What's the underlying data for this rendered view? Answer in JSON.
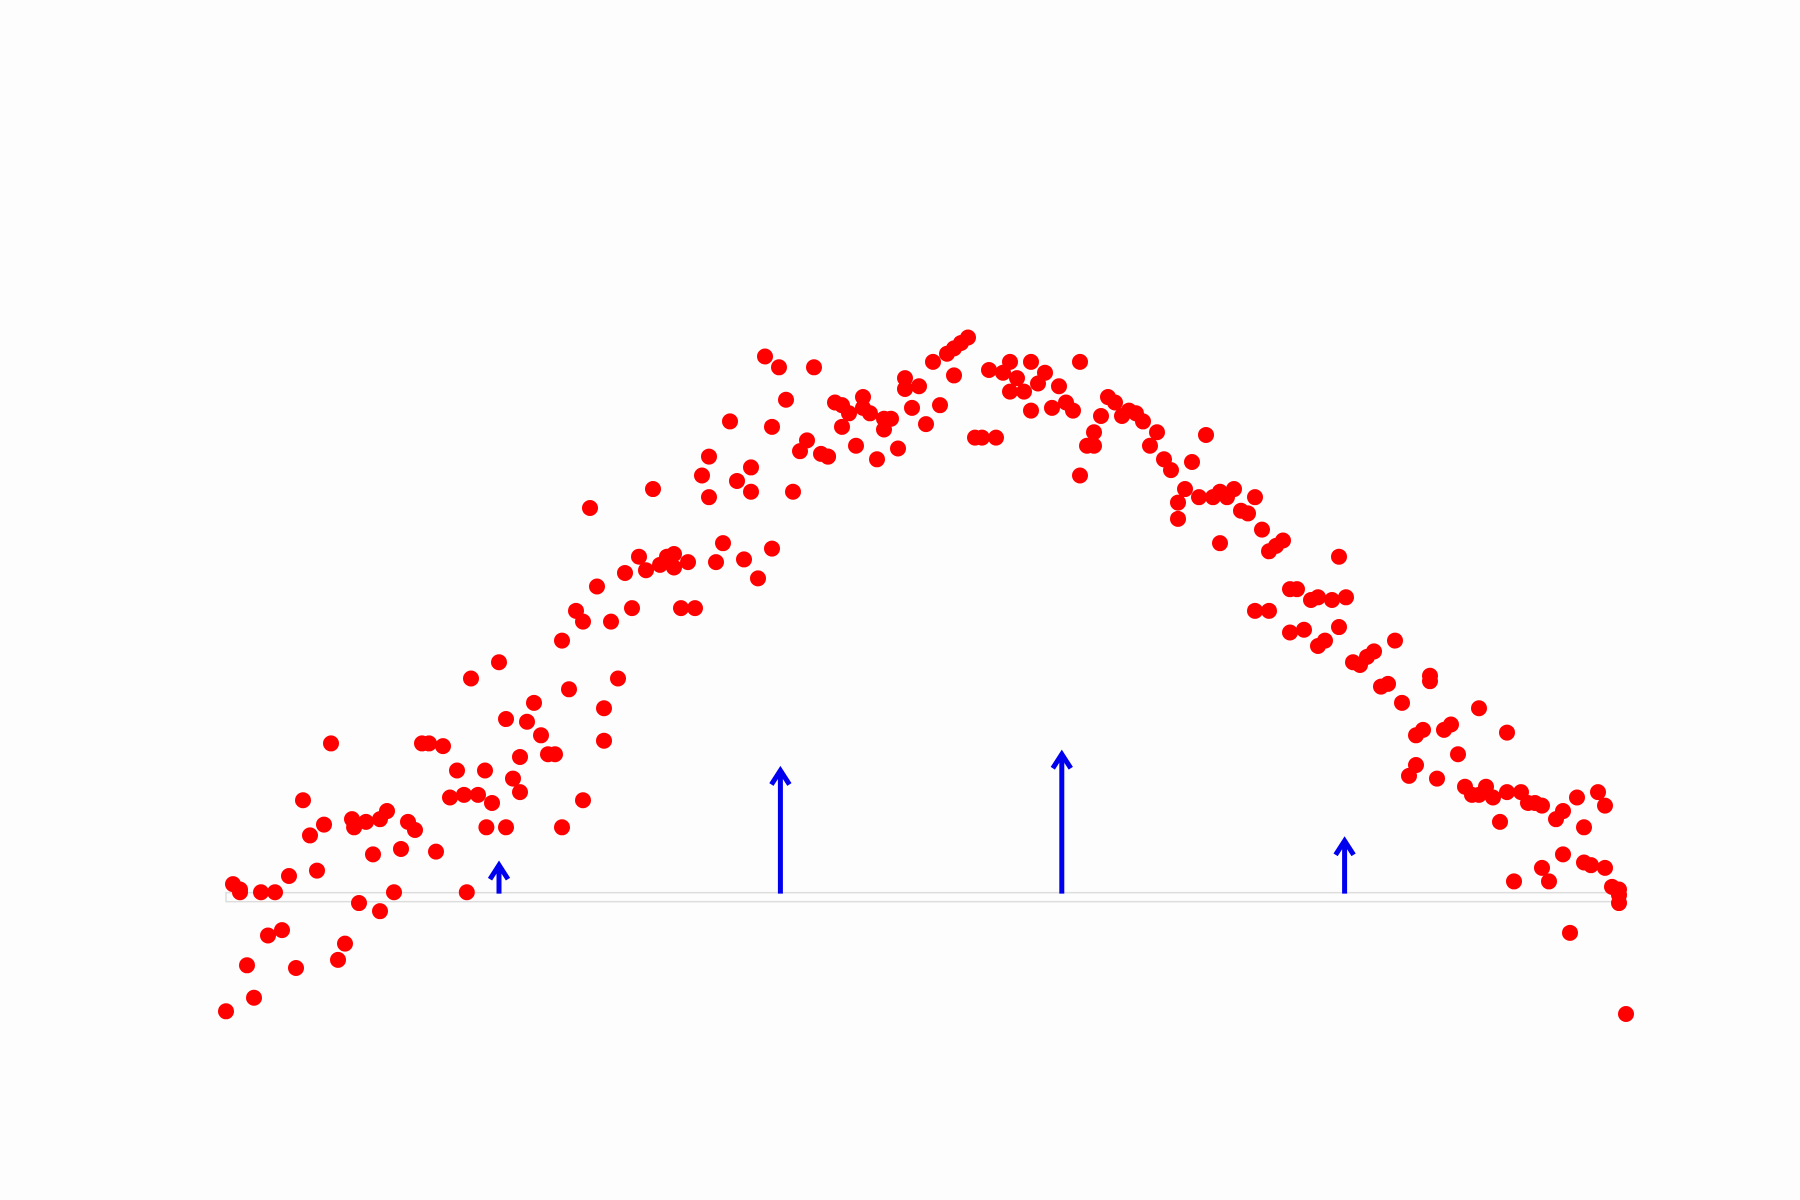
{
  "colors": {
    "background": "#fdfdfd",
    "points": "#ff0000",
    "arrows": "#0000ee",
    "baseline": "#dddddd"
  },
  "chart_data": {
    "type": "scatter",
    "title": "",
    "xlabel": "",
    "ylabel": "",
    "xlim": [
      0,
      1
    ],
    "ylim": [
      -0.6,
      2.8
    ],
    "grid": false,
    "baseline_y": 0,
    "series": [
      {
        "kind": "points",
        "points": [
          [
            0.0,
            -0.42
          ],
          [
            0.005,
            0.05
          ],
          [
            0.01,
            0.02
          ],
          [
            0.015,
            -0.25
          ],
          [
            0.02,
            -0.37
          ],
          [
            0.025,
            0.02
          ],
          [
            0.03,
            -0.14
          ],
          [
            0.035,
            0.02
          ],
          [
            0.04,
            -0.12
          ],
          [
            0.045,
            0.08
          ],
          [
            0.05,
            -0.26
          ],
          [
            0.055,
            0.36
          ],
          [
            0.06,
            0.23
          ],
          [
            0.065,
            0.1
          ],
          [
            0.07,
            0.27
          ],
          [
            0.075,
            0.57
          ],
          [
            0.08,
            -0.23
          ],
          [
            0.085,
            -0.17
          ],
          [
            0.09,
            0.29
          ],
          [
            0.095,
            -0.02
          ],
          [
            0.1,
            0.28
          ],
          [
            0.105,
            0.16
          ],
          [
            0.11,
            0.29
          ],
          [
            0.115,
            0.32
          ],
          [
            0.12,
            0.02
          ],
          [
            0.125,
            0.18
          ],
          [
            0.13,
            0.28
          ],
          [
            0.135,
            0.25
          ],
          [
            0.14,
            0.57
          ],
          [
            0.145,
            0.57
          ],
          [
            0.15,
            0.17
          ],
          [
            0.155,
            0.56
          ],
          [
            0.16,
            0.37
          ],
          [
            0.165,
            0.47
          ],
          [
            0.17,
            0.38
          ],
          [
            0.175,
            0.81
          ],
          [
            0.18,
            0.38
          ],
          [
            0.185,
            0.47
          ],
          [
            0.19,
            0.35
          ],
          [
            0.195,
            0.87
          ],
          [
            0.2,
            0.66
          ],
          [
            0.205,
            0.44
          ],
          [
            0.21,
            0.39
          ],
          [
            0.215,
            0.65
          ],
          [
            0.22,
            0.72
          ],
          [
            0.225,
            0.6
          ],
          [
            0.23,
            0.53
          ],
          [
            0.235,
            0.53
          ],
          [
            0.24,
            0.95
          ],
          [
            0.245,
            0.77
          ],
          [
            0.25,
            1.06
          ],
          [
            0.255,
            1.02
          ],
          [
            0.26,
            1.44
          ],
          [
            0.265,
            1.15
          ],
          [
            0.27,
            0.7
          ],
          [
            0.275,
            1.02
          ],
          [
            0.28,
            0.81
          ],
          [
            0.285,
            1.2
          ],
          [
            0.29,
            1.07
          ],
          [
            0.295,
            1.26
          ],
          [
            0.3,
            1.21
          ],
          [
            0.305,
            1.51
          ],
          [
            0.31,
            1.23
          ],
          [
            0.315,
            1.26
          ],
          [
            0.32,
            1.27
          ],
          [
            0.325,
            1.07
          ],
          [
            0.33,
            1.24
          ],
          [
            0.335,
            1.07
          ],
          [
            0.34,
            1.56
          ],
          [
            0.345,
            1.63
          ],
          [
            0.35,
            1.24
          ],
          [
            0.355,
            1.31
          ],
          [
            0.36,
            1.76
          ],
          [
            0.365,
            1.54
          ],
          [
            0.37,
            1.25
          ],
          [
            0.375,
            1.5
          ],
          [
            0.38,
            1.18
          ],
          [
            0.385,
            2.0
          ],
          [
            0.39,
            1.74
          ],
          [
            0.395,
            1.96
          ],
          [
            0.4,
            1.84
          ],
          [
            0.405,
            1.5
          ],
          [
            0.41,
            1.65
          ],
          [
            0.415,
            1.69
          ],
          [
            0.42,
            1.96
          ],
          [
            0.425,
            1.64
          ],
          [
            0.43,
            1.63
          ],
          [
            0.435,
            1.83
          ],
          [
            0.44,
            1.74
          ],
          [
            0.445,
            1.79
          ],
          [
            0.45,
            1.67
          ],
          [
            0.455,
            1.81
          ],
          [
            0.46,
            1.79
          ],
          [
            0.465,
            1.62
          ],
          [
            0.47,
            1.77
          ],
          [
            0.475,
            1.77
          ],
          [
            0.48,
            1.66
          ],
          [
            0.485,
            1.92
          ],
          [
            0.49,
            1.81
          ],
          [
            0.495,
            1.89
          ],
          [
            0.5,
            1.75
          ],
          [
            0.505,
            1.98
          ],
          [
            0.51,
            1.82
          ],
          [
            0.515,
            2.01
          ],
          [
            0.52,
            2.03
          ],
          [
            0.525,
            2.05
          ],
          [
            0.53,
            2.07
          ],
          [
            0.535,
            1.7
          ],
          [
            0.54,
            1.7
          ],
          [
            0.545,
            1.95
          ],
          [
            0.55,
            1.7
          ],
          [
            0.555,
            1.94
          ],
          [
            0.56,
            1.98
          ],
          [
            0.565,
            1.92
          ],
          [
            0.57,
            1.87
          ],
          [
            0.575,
            1.98
          ],
          [
            0.58,
            1.9
          ],
          [
            0.585,
            1.94
          ],
          [
            0.59,
            1.81
          ],
          [
            0.595,
            1.89
          ],
          [
            0.6,
            1.83
          ],
          [
            0.605,
            1.8
          ],
          [
            0.61,
            1.56
          ],
          [
            0.615,
            1.67
          ],
          [
            0.62,
            1.72
          ],
          [
            0.625,
            1.78
          ],
          [
            0.63,
            1.85
          ],
          [
            0.635,
            1.83
          ],
          [
            0.64,
            1.78
          ],
          [
            0.645,
            1.8
          ],
          [
            0.65,
            1.79
          ],
          [
            0.655,
            1.76
          ],
          [
            0.66,
            1.67
          ],
          [
            0.665,
            1.72
          ],
          [
            0.67,
            1.62
          ],
          [
            0.675,
            1.58
          ],
          [
            0.68,
            1.46
          ],
          [
            0.685,
            1.51
          ],
          [
            0.69,
            1.61
          ],
          [
            0.695,
            1.48
          ],
          [
            0.7,
            1.71
          ],
          [
            0.705,
            1.48
          ],
          [
            0.71,
            1.5
          ],
          [
            0.715,
            1.48
          ],
          [
            0.72,
            1.51
          ],
          [
            0.725,
            1.43
          ],
          [
            0.73,
            1.42
          ],
          [
            0.735,
            1.48
          ],
          [
            0.74,
            1.36
          ],
          [
            0.745,
            1.28
          ],
          [
            0.75,
            1.3
          ],
          [
            0.755,
            1.32
          ],
          [
            0.76,
            1.14
          ],
          [
            0.765,
            1.14
          ],
          [
            0.77,
            0.99
          ],
          [
            0.775,
            1.1
          ],
          [
            0.78,
            1.11
          ],
          [
            0.785,
            0.95
          ],
          [
            0.79,
            1.1
          ],
          [
            0.795,
            1.26
          ],
          [
            0.8,
            1.11
          ],
          [
            0.805,
            0.87
          ],
          [
            0.81,
            0.86
          ],
          [
            0.815,
            0.89
          ],
          [
            0.82,
            0.91
          ],
          [
            0.825,
            0.78
          ],
          [
            0.83,
            0.79
          ],
          [
            0.835,
            0.95
          ],
          [
            0.84,
            0.72
          ],
          [
            0.845,
            0.45
          ],
          [
            0.85,
            0.6
          ],
          [
            0.855,
            0.62
          ],
          [
            0.86,
            0.82
          ],
          [
            0.865,
            0.44
          ],
          [
            0.87,
            0.62
          ],
          [
            0.875,
            0.64
          ],
          [
            0.88,
            0.53
          ],
          [
            0.885,
            0.41
          ],
          [
            0.89,
            0.38
          ],
          [
            0.895,
            0.38
          ],
          [
            0.9,
            0.41
          ],
          [
            0.905,
            0.37
          ],
          [
            0.91,
            0.28
          ],
          [
            0.915,
            0.61
          ],
          [
            0.92,
            0.06
          ],
          [
            0.925,
            0.39
          ],
          [
            0.93,
            0.35
          ],
          [
            0.935,
            0.35
          ],
          [
            0.94,
            0.11
          ],
          [
            0.945,
            0.06
          ],
          [
            0.95,
            0.29
          ],
          [
            0.955,
            0.32
          ],
          [
            0.96,
            -0.13
          ],
          [
            0.965,
            0.37
          ],
          [
            0.97,
            0.13
          ],
          [
            0.975,
            0.12
          ],
          [
            0.98,
            0.39
          ],
          [
            0.985,
            0.11
          ],
          [
            0.99,
            0.04
          ],
          [
            0.995,
            0.03
          ],
          [
            1.0,
            -0.43
          ],
          [
            0.01,
            0.03
          ],
          [
            0.0915,
            0.26
          ],
          [
            0.11,
            -0.05
          ],
          [
            0.172,
            0.02
          ],
          [
            0.186,
            0.26
          ],
          [
            0.2,
            0.26
          ],
          [
            0.21,
            0.52
          ],
          [
            0.24,
            0.26
          ],
          [
            0.255,
            0.36
          ],
          [
            0.27,
            0.58
          ],
          [
            0.32,
            1.22
          ],
          [
            0.345,
            1.48
          ],
          [
            0.375,
            1.59
          ],
          [
            0.39,
            1.29
          ],
          [
            0.43,
            1.63
          ],
          [
            0.44,
            1.82
          ],
          [
            0.455,
            1.85
          ],
          [
            0.47,
            1.73
          ],
          [
            0.485,
            1.88
          ],
          [
            0.52,
            1.93
          ],
          [
            0.56,
            1.87
          ],
          [
            0.575,
            1.8
          ],
          [
            0.61,
            1.98
          ],
          [
            0.62,
            1.67
          ],
          [
            0.68,
            1.4
          ],
          [
            0.71,
            1.31
          ],
          [
            0.735,
            1.06
          ],
          [
            0.745,
            1.06
          ],
          [
            0.76,
            0.98
          ],
          [
            0.78,
            0.93
          ],
          [
            0.795,
            1.0
          ],
          [
            0.85,
            0.49
          ],
          [
            0.86,
            0.8
          ],
          [
            0.895,
            0.7
          ],
          [
            0.915,
            0.39
          ],
          [
            0.94,
            0.34
          ],
          [
            0.955,
            0.16
          ],
          [
            0.97,
            0.26
          ],
          [
            0.985,
            0.34
          ],
          [
            0.995,
            -0.02
          ],
          [
            0.995,
            0.01
          ]
        ]
      },
      {
        "kind": "arrows",
        "arrows": [
          {
            "x": 0.195,
            "y": 0.12
          },
          {
            "x": 0.396,
            "y": 0.47
          },
          {
            "x": 0.597,
            "y": 0.53
          },
          {
            "x": 0.799,
            "y": 0.21
          }
        ]
      }
    ]
  }
}
